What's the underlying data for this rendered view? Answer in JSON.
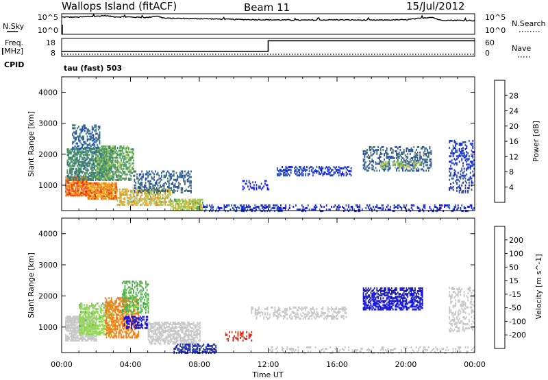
{
  "header": {
    "station": "Wallops Island (fitACF)",
    "beam": "Beam 11",
    "date": "15/Jul/2012"
  },
  "top_panels": {
    "nsky_label": "N.Sky",
    "nsky_ticks": [
      "10^5",
      "10^0"
    ],
    "nsearch_label": "N.Search",
    "nsearch_ticks": [
      "10^5",
      "10^0"
    ],
    "freq_label_1": "Freq.",
    "freq_label_2": "[MHz]",
    "freq_ticks": [
      "18",
      "8"
    ],
    "nave_label": "Nave",
    "nave_ticks": [
      "60",
      "0"
    ],
    "cpid_label": "CPID",
    "cpid_value": "tau (fast) 503"
  },
  "colors": {
    "power": [
      "#1818e0",
      "#2850b0",
      "#3a7878",
      "#52a060",
      "#a0c858",
      "#f0b020",
      "#f08018",
      "#f04010",
      "#e81010"
    ],
    "velocity": [
      "#e81818",
      "#f05010",
      "#f08018",
      "#f8b040",
      "#c8c8c8",
      "#c8c8c8",
      "#90d850",
      "#50b050",
      "#408080",
      "#2848b0",
      "#1818d8"
    ]
  },
  "chart_data": [
    {
      "type": "line",
      "name_label": "N.Sky / N.Search",
      "x_unit": "hours UT",
      "x": [
        0,
        1,
        2,
        2.5,
        3,
        4,
        5,
        5.5,
        6,
        8,
        10,
        12,
        14,
        16,
        18,
        20,
        21.5,
        22,
        24
      ],
      "y_nsky_log10": [
        4.3,
        4.3,
        4.5,
        4.7,
        4.4,
        4.3,
        4.2,
        4.6,
        4.0,
        3.9,
        3.7,
        3.6,
        3.5,
        3.6,
        3.5,
        3.6,
        4.3,
        3.5,
        3.4
      ],
      "ylim": [
        0,
        5
      ]
    },
    {
      "type": "line",
      "x_unit": "hours UT",
      "freq_x": [
        0,
        12,
        12,
        24
      ],
      "freq_y": [
        10.5,
        10.5,
        17,
        17
      ],
      "nave_x": [
        0,
        24
      ],
      "nave_y": [
        5,
        5
      ],
      "freq_ylim": [
        8,
        18
      ],
      "nave_ylim": [
        0,
        60
      ]
    },
    {
      "type": "heatmap",
      "ylabel": "Slant Range [km]",
      "xlabel": "Time UT",
      "colorbar_label": "Power [dB]",
      "colorbar_ticks": [
        "4",
        "8",
        "12",
        "16",
        "20",
        "24",
        "28"
      ],
      "xlim": [
        0,
        24
      ],
      "ylim": [
        180,
        4500
      ],
      "x_ticks": [
        "00:00",
        "04:00",
        "08:00",
        "12:00",
        "16:00",
        "20:00",
        "00:00"
      ],
      "y_ticks": [
        "1000",
        "2000",
        "3000",
        "4000"
      ],
      "clusters": [
        {
          "t": [
            0.2,
            1.5
          ],
          "r": [
            700,
            1300
          ],
          "v": 26,
          "d": 0.85
        },
        {
          "t": [
            1.5,
            3.2
          ],
          "r": [
            600,
            1100
          ],
          "v": 24,
          "d": 0.8
        },
        {
          "t": [
            3.2,
            6.3
          ],
          "r": [
            400,
            900
          ],
          "v": 20,
          "d": 0.6
        },
        {
          "t": [
            6.3,
            8.2
          ],
          "r": [
            250,
            600
          ],
          "v": 18,
          "d": 0.7
        },
        {
          "t": [
            0.3,
            3.0
          ],
          "r": [
            1200,
            2200
          ],
          "v": 12,
          "d": 0.65
        },
        {
          "t": [
            2.0,
            4.2
          ],
          "r": [
            1200,
            2300
          ],
          "v": 15,
          "d": 0.55
        },
        {
          "t": [
            0.6,
            2.2
          ],
          "r": [
            2200,
            3000
          ],
          "v": 9,
          "d": 0.4
        },
        {
          "t": [
            4.2,
            7.5
          ],
          "r": [
            800,
            1500
          ],
          "v": 9,
          "d": 0.35
        },
        {
          "t": [
            8.2,
            13.0
          ],
          "r": [
            200,
            400
          ],
          "v": 6,
          "d": 0.4
        },
        {
          "t": [
            13.0,
            24.0
          ],
          "r": [
            200,
            420
          ],
          "v": 5,
          "d": 0.25
        },
        {
          "t": [
            12.5,
            16.8
          ],
          "r": [
            1350,
            1650
          ],
          "v": 6,
          "d": 0.4
        },
        {
          "t": [
            10.5,
            12.0
          ],
          "r": [
            900,
            1200
          ],
          "v": 5,
          "d": 0.3
        },
        {
          "t": [
            17.5,
            21.5
          ],
          "r": [
            1500,
            2300
          ],
          "v": 9,
          "d": 0.35
        },
        {
          "t": [
            18.5,
            21.0
          ],
          "r": [
            1600,
            1800
          ],
          "v": 17,
          "d": 0.4
        },
        {
          "t": [
            22.5,
            24.0
          ],
          "r": [
            800,
            2500
          ],
          "v": 6,
          "d": 0.3
        }
      ]
    },
    {
      "type": "heatmap",
      "ylabel": "Slant Range [km]",
      "xlabel": "Time UT",
      "colorbar_label": "Velocity [m s^-1]",
      "colorbar_ticks": [
        "-200",
        "-100",
        "-50",
        "-15",
        "15",
        "50",
        "100",
        "200"
      ],
      "xlim": [
        0,
        24
      ],
      "ylim": [
        180,
        4500
      ],
      "x_ticks": [
        "00:00",
        "04:00",
        "08:00",
        "12:00",
        "16:00",
        "20:00",
        "00:00"
      ],
      "y_ticks": [
        "1000",
        "2000",
        "3000",
        "4000"
      ],
      "clusters": [
        {
          "t": [
            0.2,
            2.0
          ],
          "r": [
            600,
            1400
          ],
          "v": -5,
          "d": 0.75
        },
        {
          "t": [
            1.0,
            3.0
          ],
          "r": [
            800,
            1800
          ],
          "v": 30,
          "d": 0.55
        },
        {
          "t": [
            2.5,
            4.5
          ],
          "r": [
            700,
            2000
          ],
          "v": -60,
          "d": 0.5
        },
        {
          "t": [
            3.6,
            5.0
          ],
          "r": [
            1000,
            1400
          ],
          "v": 200,
          "d": 0.5
        },
        {
          "t": [
            3.5,
            5.0
          ],
          "r": [
            1500,
            2500
          ],
          "v": 40,
          "d": 0.4
        },
        {
          "t": [
            5.0,
            8.0
          ],
          "r": [
            500,
            1200
          ],
          "v": -5,
          "d": 0.55
        },
        {
          "t": [
            6.5,
            9.0
          ],
          "r": [
            200,
            500
          ],
          "v": 150,
          "d": 0.55
        },
        {
          "t": [
            9.5,
            11.0
          ],
          "r": [
            600,
            900
          ],
          "v": -150,
          "d": 0.3
        },
        {
          "t": [
            11.0,
            16.5
          ],
          "r": [
            1300,
            1700
          ],
          "v": 0,
          "d": 0.35
        },
        {
          "t": [
            12.0,
            24.0
          ],
          "r": [
            200,
            420
          ],
          "v": 0,
          "d": 0.2
        },
        {
          "t": [
            17.5,
            21.0
          ],
          "r": [
            1600,
            2300
          ],
          "v": 200,
          "d": 0.55
        },
        {
          "t": [
            22.5,
            24.0
          ],
          "r": [
            900,
            2300
          ],
          "v": 0,
          "d": 0.3
        }
      ]
    }
  ]
}
